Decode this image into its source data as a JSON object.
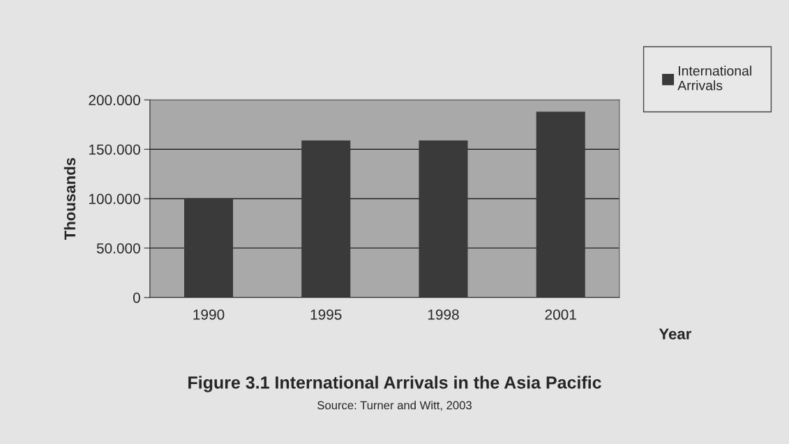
{
  "chart_data": {
    "type": "bar",
    "title": "Figure 3.1 International Arrivals in the Asia Pacific",
    "xlabel": "Year",
    "ylabel": "Thousands",
    "annotations": [
      "Source: Turner and Witt, 2003"
    ],
    "categories": [
      "1990",
      "1995",
      "1998",
      "2001"
    ],
    "series": [
      {
        "name": "International Arrivals",
        "color": "#3a3a3a",
        "values": [
          99,
          158,
          158,
          187
        ]
      }
    ],
    "ylim": [
      0,
      200
    ],
    "yticks": [
      0,
      {
        "value": 50,
        "label": "50.000"
      },
      {
        "value": 100,
        "label": "100.000"
      },
      {
        "value": 150,
        "label": "150.000"
      },
      {
        "value": 200,
        "label": "200.000"
      }
    ],
    "grid": "y",
    "legend": "top right"
  }
}
